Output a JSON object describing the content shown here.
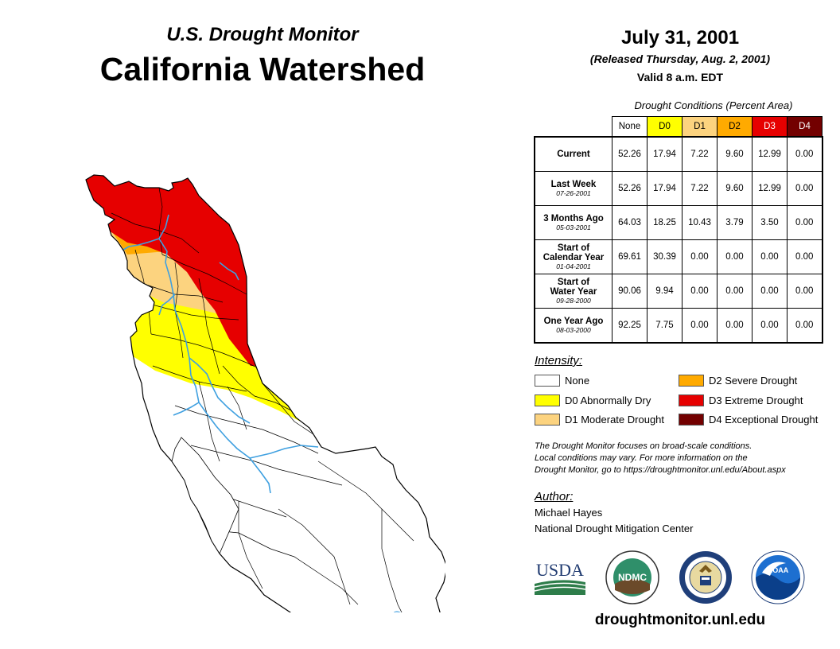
{
  "header": {
    "subtitle": "U.S. Drought Monitor",
    "title": "California Watershed",
    "date": "July 31, 2001",
    "released": "(Released Thursday, Aug. 2, 2001)",
    "valid": "Valid 8 a.m. EDT"
  },
  "table": {
    "caption": "Drought Conditions (Percent Area)",
    "columns": [
      "None",
      "D0",
      "D1",
      "D2",
      "D3",
      "D4"
    ],
    "rows": [
      {
        "label": "Current",
        "date": "",
        "values": [
          "52.26",
          "17.94",
          "7.22",
          "9.60",
          "12.99",
          "0.00"
        ]
      },
      {
        "label": "Last Week",
        "date": "07-26-2001",
        "values": [
          "52.26",
          "17.94",
          "7.22",
          "9.60",
          "12.99",
          "0.00"
        ]
      },
      {
        "label": "3 Months Ago",
        "date": "05-03-2001",
        "values": [
          "64.03",
          "18.25",
          "10.43",
          "3.79",
          "3.50",
          "0.00"
        ]
      },
      {
        "label_line1": "Start of",
        "label_line2": "Calendar Year",
        "date": "01-04-2001",
        "values": [
          "69.61",
          "30.39",
          "0.00",
          "0.00",
          "0.00",
          "0.00"
        ]
      },
      {
        "label_line1": "Start of",
        "label_line2": "Water Year",
        "date": "09-28-2000",
        "values": [
          "90.06",
          "9.94",
          "0.00",
          "0.00",
          "0.00",
          "0.00"
        ]
      },
      {
        "label": "One Year Ago",
        "date": "08-03-2000",
        "values": [
          "92.25",
          "7.75",
          "0.00",
          "0.00",
          "0.00",
          "0.00"
        ]
      }
    ]
  },
  "legend": {
    "heading": "Intensity:",
    "items": [
      {
        "label": "None",
        "color": "#ffffff"
      },
      {
        "label": "D0 Abnormally Dry",
        "color": "#ffff00"
      },
      {
        "label": "D1 Moderate Drought",
        "color": "#fcd37f"
      },
      {
        "label": "D2 Severe Drought",
        "color": "#ffaa00"
      },
      {
        "label": "D3 Extreme Drought",
        "color": "#e60000"
      },
      {
        "label": "D4 Exceptional Drought",
        "color": "#730000"
      }
    ]
  },
  "footnote": {
    "line1": "The Drought Monitor focuses on broad-scale conditions.",
    "line2": "Local conditions may vary. For more information on the",
    "line3": "Drought Monitor, go to https://droughtmonitor.unl.edu/About.aspx"
  },
  "author": {
    "heading": "Author:",
    "name": "Michael Hayes",
    "org": "National Drought Mitigation Center"
  },
  "logos": {
    "usda": "USDA",
    "ndmc": "NDMC",
    "noaa": "NOAA"
  },
  "website": "droughtmonitor.unl.edu",
  "colors": {
    "none": "#ffffff",
    "d0": "#ffff00",
    "d1": "#fcd37f",
    "d2": "#ffaa00",
    "d3": "#e60000",
    "d4": "#730000",
    "river": "#3fa0e0"
  }
}
